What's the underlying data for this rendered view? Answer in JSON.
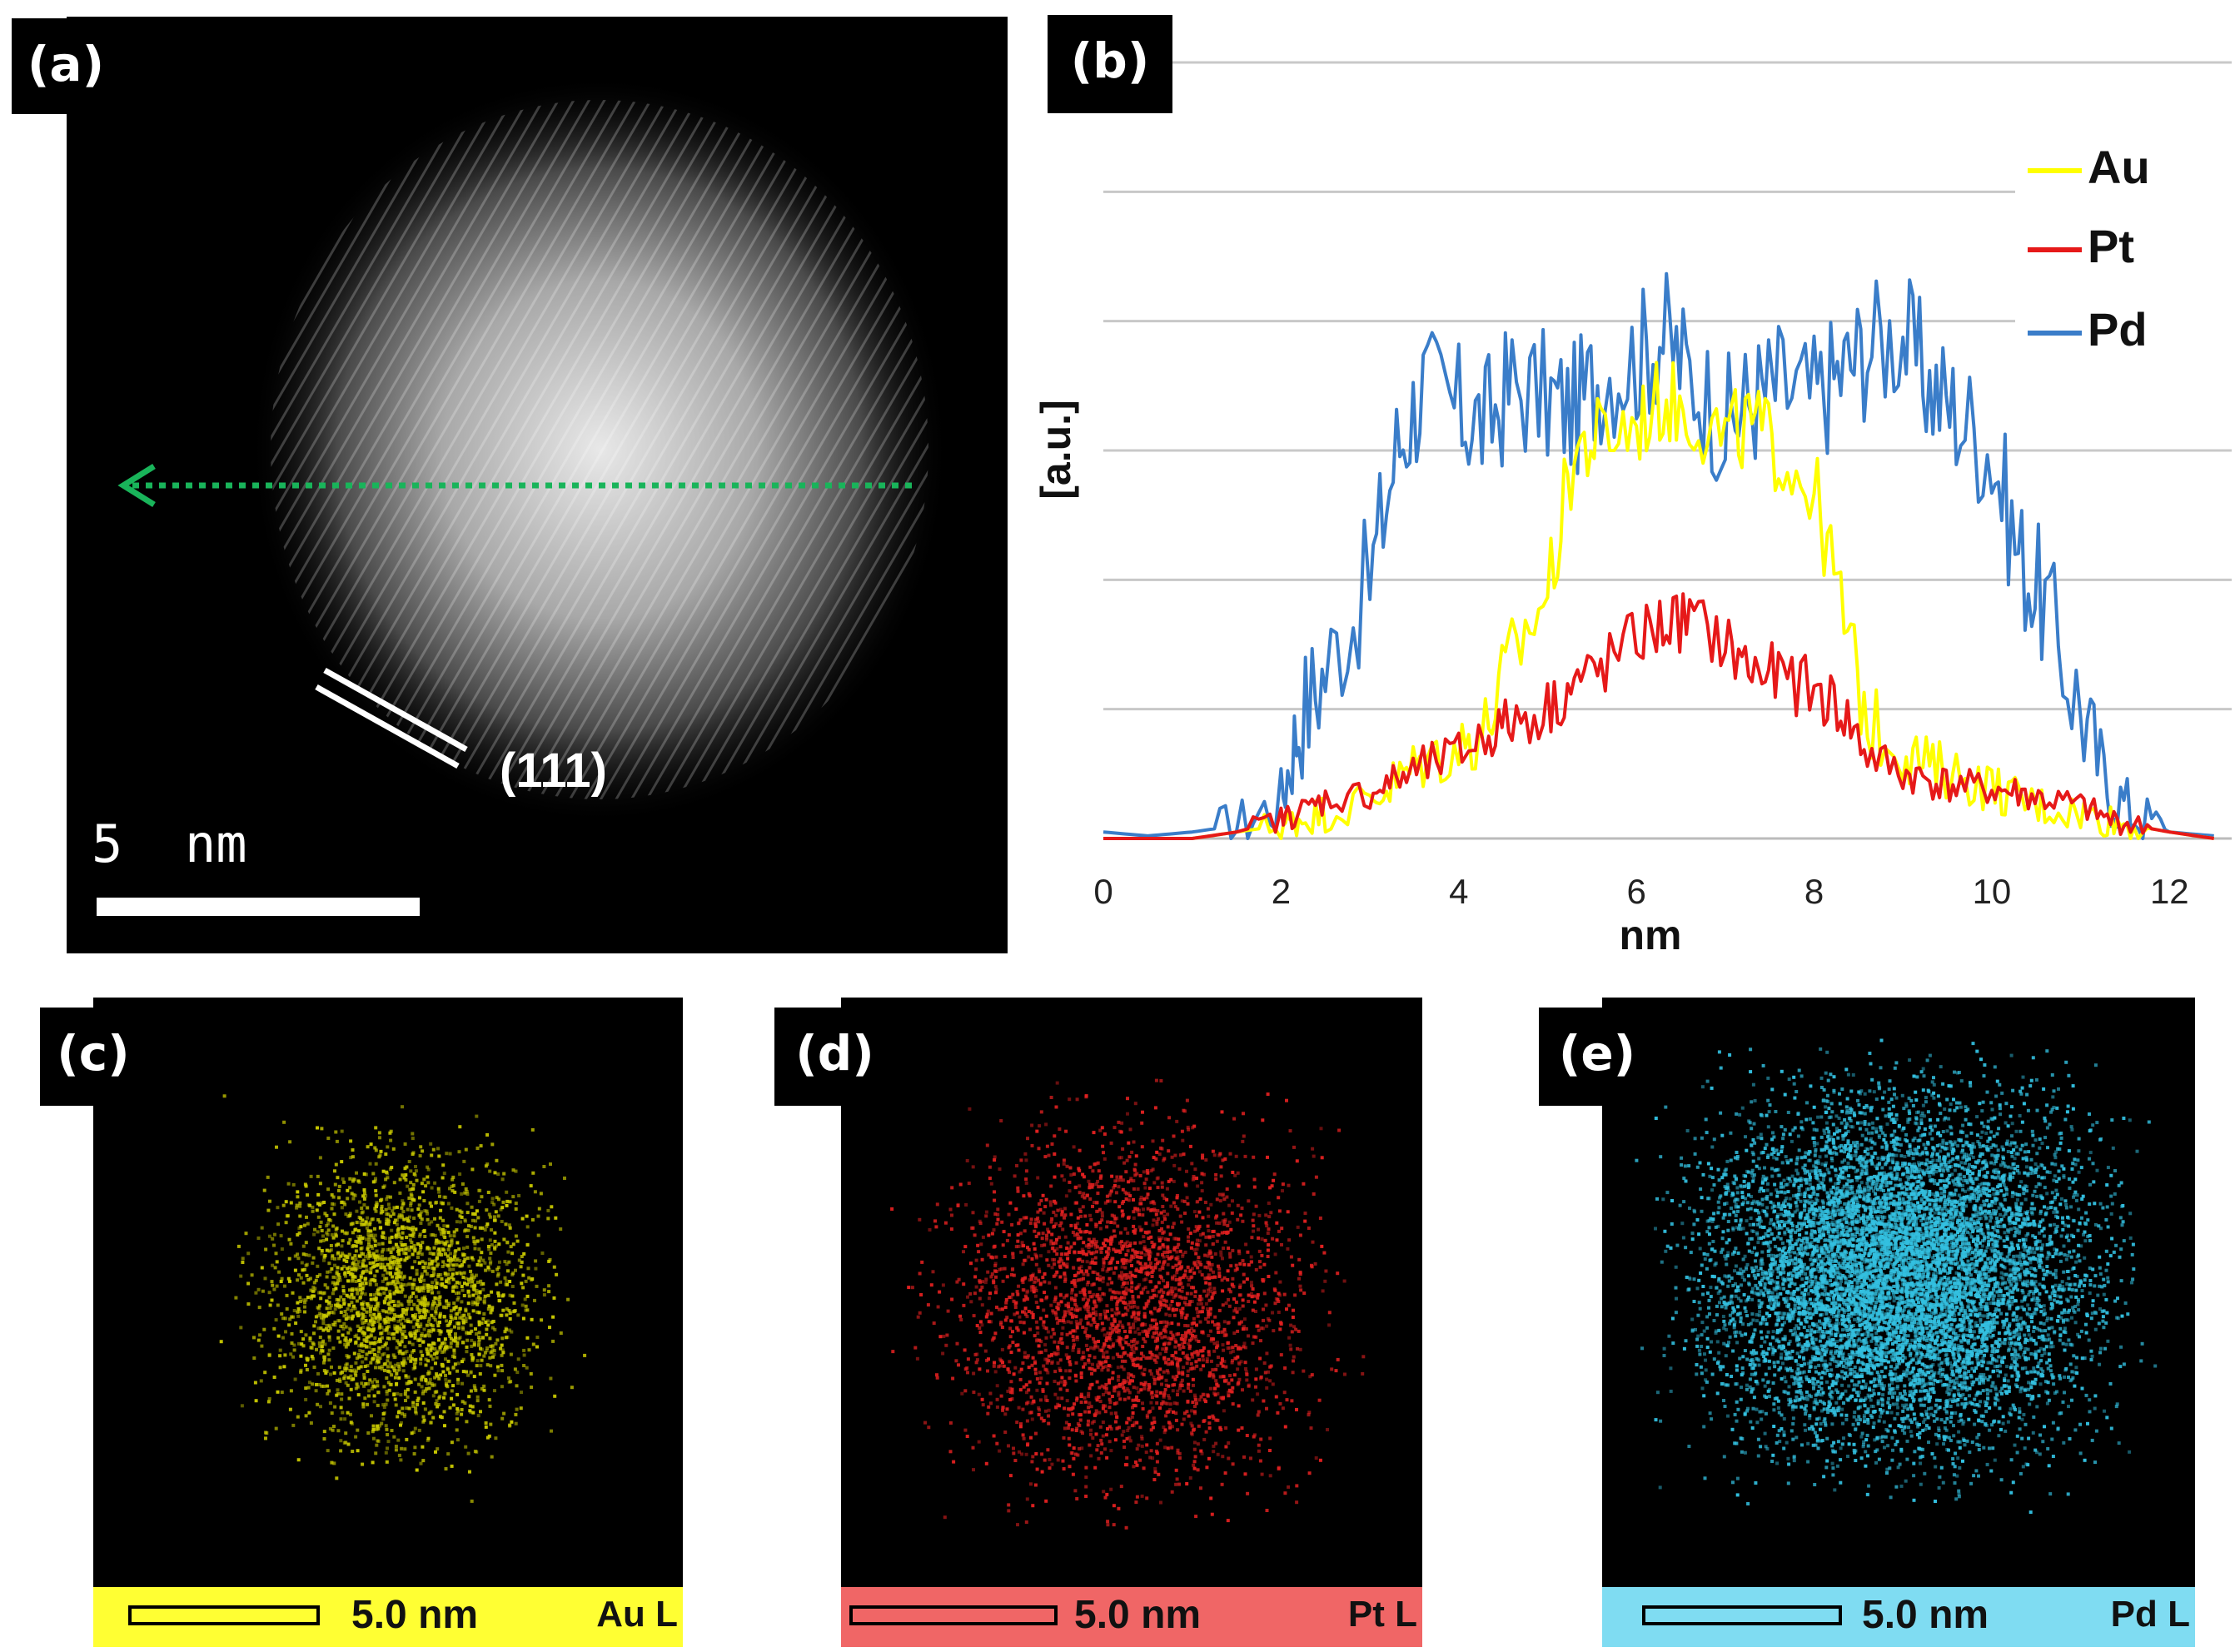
{
  "panel_labels": {
    "a": "(a)",
    "b": "(b)",
    "c": "(c)",
    "d": "(d)",
    "e": "(e)"
  },
  "panel_a": {
    "plane_label": "(111)",
    "scale_label": "5  nm"
  },
  "colors": {
    "au": "#ffff00",
    "pt": "#e61919",
    "pd": "#3a7dc9",
    "arrow": "#19b45a",
    "map_au": "#c8c800",
    "map_pt": "#e02020",
    "map_pd": "#33c0e0"
  },
  "maps": [
    {
      "id": "c",
      "scale_label": "5.0 nm",
      "element_label": "Au L",
      "bar_color": "#ffff33"
    },
    {
      "id": "d",
      "scale_label": "5.0 nm",
      "element_label": "Pt L",
      "bar_color": "#f06666"
    },
    {
      "id": "e",
      "scale_label": "5.0 nm",
      "element_label": "Pd L",
      "bar_color": "#7fdcf2"
    }
  ],
  "chart_data": {
    "type": "line",
    "title": "",
    "xlabel": "nm",
    "ylabel": "[a.u.]",
    "xlim": [
      0,
      12.7
    ],
    "ylim": [
      0,
      6.0
    ],
    "xticks": [
      "0",
      "2",
      "4",
      "6",
      "8",
      "10",
      "12"
    ],
    "grid": true,
    "legend_position": "top-right",
    "x": [
      0,
      0.5,
      1.0,
      1.5,
      2.0,
      2.2,
      2.5,
      3.0,
      3.3,
      3.6,
      4.0,
      4.3,
      4.6,
      5.0,
      5.3,
      5.6,
      6.0,
      6.3,
      6.6,
      7.0,
      7.3,
      7.6,
      8.0,
      8.3,
      8.6,
      9.0,
      9.3,
      9.6,
      10.0,
      10.3,
      10.6,
      11.0,
      11.3,
      11.6,
      12.0,
      12.5
    ],
    "series": [
      {
        "name": "Au",
        "values": [
          0,
          0,
          0,
          0.05,
          0.1,
          0.15,
          0.2,
          0.3,
          0.45,
          0.6,
          0.7,
          0.85,
          1.4,
          1.9,
          3.0,
          3.1,
          3.2,
          3.4,
          3.3,
          3.1,
          3.2,
          3.0,
          2.7,
          1.8,
          0.9,
          0.7,
          0.55,
          0.5,
          0.4,
          0.3,
          0.25,
          0.2,
          0.15,
          0.1,
          0.05,
          0
        ]
      },
      {
        "name": "Pt",
        "values": [
          0,
          0,
          0,
          0.05,
          0.15,
          0.2,
          0.3,
          0.35,
          0.45,
          0.55,
          0.65,
          0.8,
          0.9,
          1.0,
          1.2,
          1.3,
          1.55,
          1.65,
          1.7,
          1.5,
          1.3,
          1.25,
          1.15,
          1.0,
          0.65,
          0.5,
          0.45,
          0.4,
          0.38,
          0.35,
          0.3,
          0.25,
          0.15,
          0.1,
          0.05,
          0
        ]
      },
      {
        "name": "Pd",
        "values": [
          0.05,
          0.02,
          0.05,
          0.1,
          0.3,
          0.9,
          1.3,
          2.0,
          3.0,
          3.5,
          3.3,
          3.2,
          3.5,
          3.4,
          3.3,
          3.6,
          3.7,
          3.9,
          3.6,
          3.2,
          3.4,
          3.5,
          3.4,
          3.6,
          3.8,
          3.9,
          3.5,
          3.3,
          3.0,
          2.2,
          1.8,
          1.0,
          0.4,
          0.2,
          0.05,
          0.02
        ]
      }
    ]
  }
}
